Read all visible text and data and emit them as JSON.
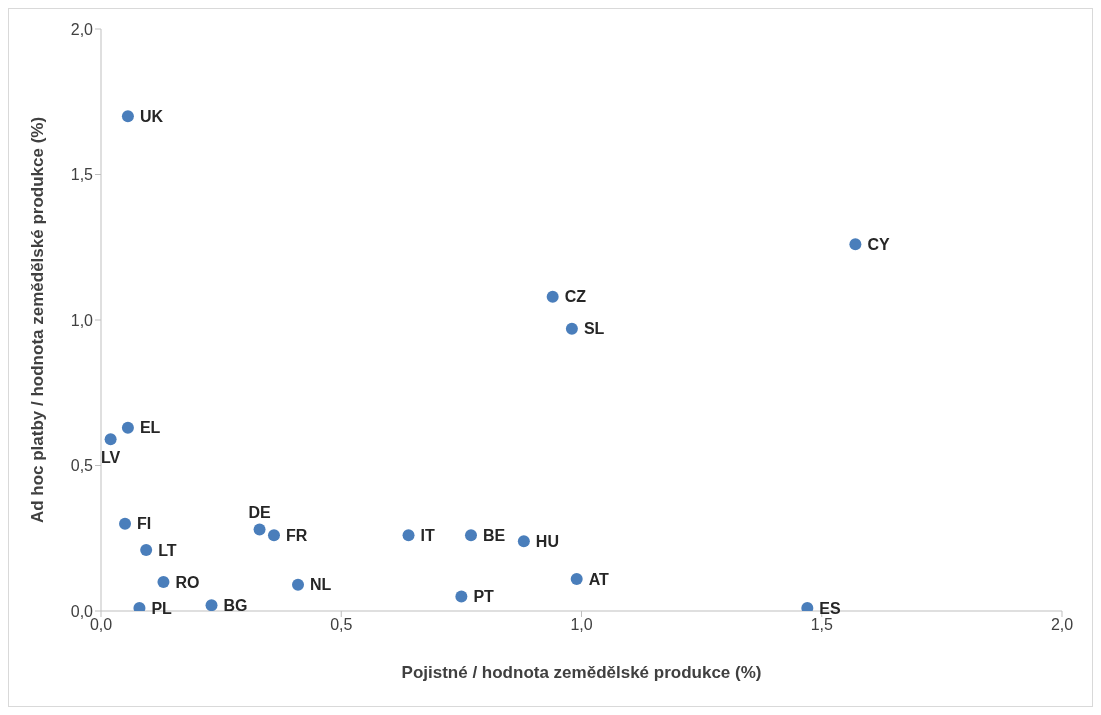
{
  "chart_data": {
    "type": "scatter",
    "xlabel": "Pojistné / hodnota zemědělské produkce (%)",
    "ylabel": "Ad hoc platby / hodnota zemědělské produkce (%)",
    "x": [
      0.056,
      1.57,
      0.94,
      0.98,
      0.056,
      0.02,
      0.05,
      0.094,
      0.33,
      0.36,
      0.64,
      0.77,
      0.88,
      0.13,
      0.41,
      0.99,
      0.75,
      0.08,
      0.23,
      1.47
    ],
    "series": [
      {
        "color": "#4a7ebb",
        "values": [
          1.7,
          1.26,
          1.08,
          0.97,
          0.63,
          0.59,
          0.3,
          0.21,
          0.28,
          0.26,
          0.26,
          0.26,
          0.24,
          0.1,
          0.09,
          0.11,
          0.05,
          0.01,
          0.02,
          0.01
        ]
      }
    ],
    "xlim": [
      0,
      2
    ],
    "xticks": [
      {
        "value": 0,
        "label": "0,0"
      },
      {
        "value": 0.5,
        "label": "0,5"
      },
      {
        "value": 1,
        "label": "1,0"
      },
      {
        "value": 1.5,
        "label": "1,5"
      },
      {
        "value": 2,
        "label": "2,0"
      }
    ],
    "ylim": [
      0,
      2
    ],
    "yticks": [
      {
        "value": 0,
        "label": "0,0"
      },
      {
        "value": 0.5,
        "label": "0,5"
      },
      {
        "value": 1,
        "label": "1,0"
      },
      {
        "value": 1.5,
        "label": "1,5"
      },
      {
        "value": 2,
        "label": "2,0"
      }
    ],
    "grid": false,
    "legend": false,
    "marker": "circle",
    "annotations": [
      {
        "text": "UK",
        "x": 0.056,
        "y": 1.7
      },
      {
        "text": "CY",
        "x": 1.57,
        "y": 1.26
      },
      {
        "text": "CZ",
        "x": 0.94,
        "y": 1.08
      },
      {
        "text": "SL",
        "x": 0.98,
        "y": 0.97
      },
      {
        "text": "EL",
        "x": 0.056,
        "y": 0.63
      },
      {
        "text": "LV",
        "x": 0.02,
        "y": 0.59
      },
      {
        "text": "FI",
        "x": 0.05,
        "y": 0.3
      },
      {
        "text": "LT",
        "x": 0.094,
        "y": 0.21
      },
      {
        "text": "DE",
        "x": 0.33,
        "y": 0.28
      },
      {
        "text": "FR",
        "x": 0.36,
        "y": 0.26
      },
      {
        "text": "IT",
        "x": 0.64,
        "y": 0.26
      },
      {
        "text": "BE",
        "x": 0.77,
        "y": 0.26
      },
      {
        "text": "HU",
        "x": 0.88,
        "y": 0.24
      },
      {
        "text": "RO",
        "x": 0.13,
        "y": 0.1
      },
      {
        "text": "NL",
        "x": 0.41,
        "y": 0.09
      },
      {
        "text": "AT",
        "x": 0.99,
        "y": 0.11
      },
      {
        "text": "PT",
        "x": 0.75,
        "y": 0.05
      },
      {
        "text": "PL",
        "x": 0.08,
        "y": 0.01
      },
      {
        "text": "BG",
        "x": 0.23,
        "y": 0.02
      },
      {
        "text": "ES",
        "x": 1.47,
        "y": 0.01
      }
    ]
  }
}
